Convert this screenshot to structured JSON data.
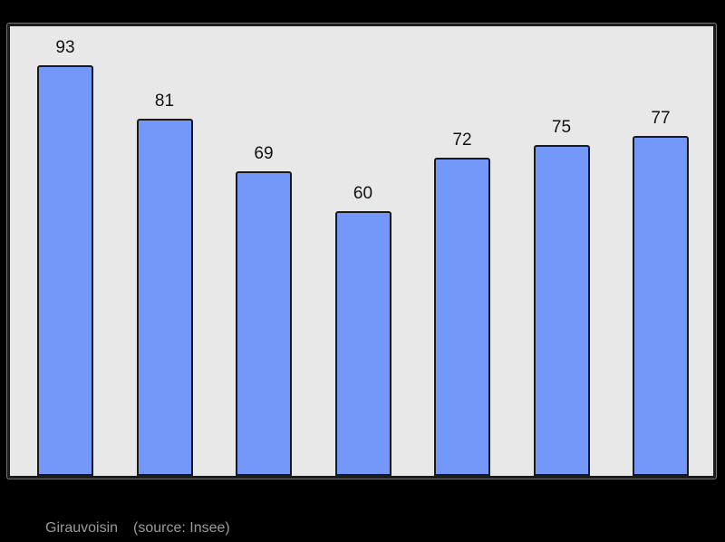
{
  "page": {
    "background": "#000000"
  },
  "chart_data": {
    "type": "bar",
    "values": [
      93,
      81,
      69,
      60,
      72,
      75,
      77
    ],
    "value_labels": [
      "93",
      "81",
      "69",
      "60",
      "72",
      "75",
      "77"
    ],
    "title": "",
    "xlabel": "",
    "ylabel": "",
    "ylim": [
      0,
      102
    ],
    "grid": false,
    "legend": false,
    "x_tick_labels_visible": false,
    "y_axis_visible": false,
    "bar_color": "#7398fa",
    "bar_border_color": "#1a1a1a",
    "value_label_color": "#111111",
    "panel_background": "#e8e8e8",
    "panel_border_color": "#1c1c1c"
  },
  "footer": {
    "place_label": "Girauvoisin",
    "source_label": "(source: Insee)",
    "text_color": "#9a9a9a"
  }
}
